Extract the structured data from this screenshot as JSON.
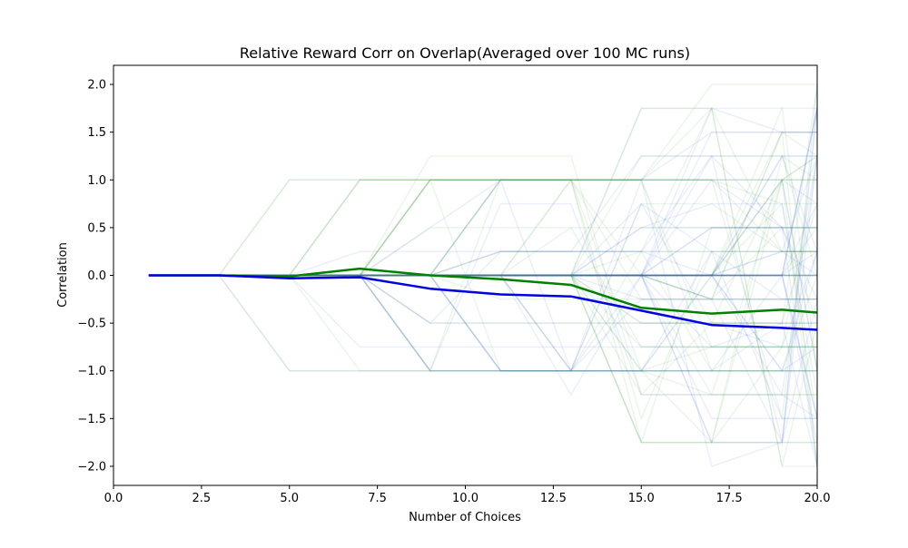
{
  "chart_data": {
    "type": "line",
    "title": "Relative Reward Corr on Overlap(Averaged over 100 MC runs)",
    "xlabel": "Number of Choices",
    "ylabel": "Correlation",
    "xlim": [
      0,
      20
    ],
    "ylim": [
      -2.2,
      2.2
    ],
    "xticks": [
      0.0,
      2.5,
      5.0,
      7.5,
      10.0,
      12.5,
      15.0,
      17.5,
      20.0
    ],
    "xtick_labels": [
      "0.0",
      "2.5",
      "5.0",
      "7.5",
      "10.0",
      "12.5",
      "15.0",
      "17.5",
      "20.0"
    ],
    "yticks": [
      2.0,
      1.5,
      1.0,
      0.5,
      0.0,
      -0.5,
      -1.0,
      -1.5,
      -2.0
    ],
    "ytick_labels": [
      "2.0",
      "1.5",
      "1.0",
      "0.5",
      "0.0",
      "−0.5",
      "−1.0",
      "−1.5",
      "−2.0"
    ],
    "grid": false,
    "legend": "none",
    "x": [
      1,
      3,
      5,
      7,
      9,
      11,
      13,
      15,
      17,
      19,
      20
    ],
    "series": [
      {
        "color": "#008000",
        "values": [
          0.0,
          0.0,
          -0.01,
          0.07,
          0.0,
          -0.04,
          -0.1,
          -0.34,
          -0.4,
          -0.36,
          -0.39
        ]
      },
      {
        "color": "#0000e0",
        "values": [
          0.0,
          0.0,
          -0.03,
          -0.02,
          -0.14,
          -0.2,
          -0.22,
          -0.37,
          -0.52,
          -0.55,
          -0.57
        ]
      }
    ],
    "background_runs": {
      "count": 100,
      "opacity": 0.1,
      "colors": [
        "#3a5fd8",
        "#3a9b3a"
      ]
    }
  }
}
